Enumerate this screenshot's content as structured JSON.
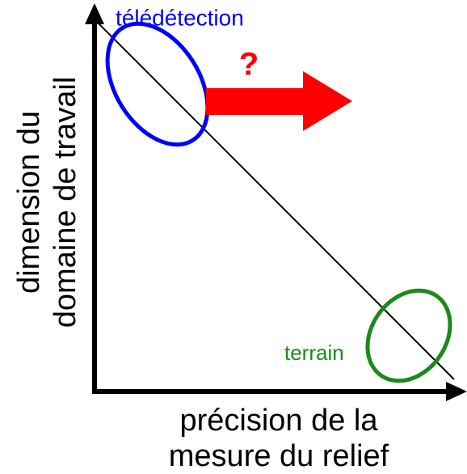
{
  "labels": {
    "remote_sensing": "télédétection",
    "field": "terrain",
    "question": "?"
  },
  "y_axis": {
    "lines": [
      "dimension du",
      "domaine de travail"
    ]
  },
  "x_axis": {
    "lines": [
      "précision de la",
      "mesure du relief"
    ]
  }
}
